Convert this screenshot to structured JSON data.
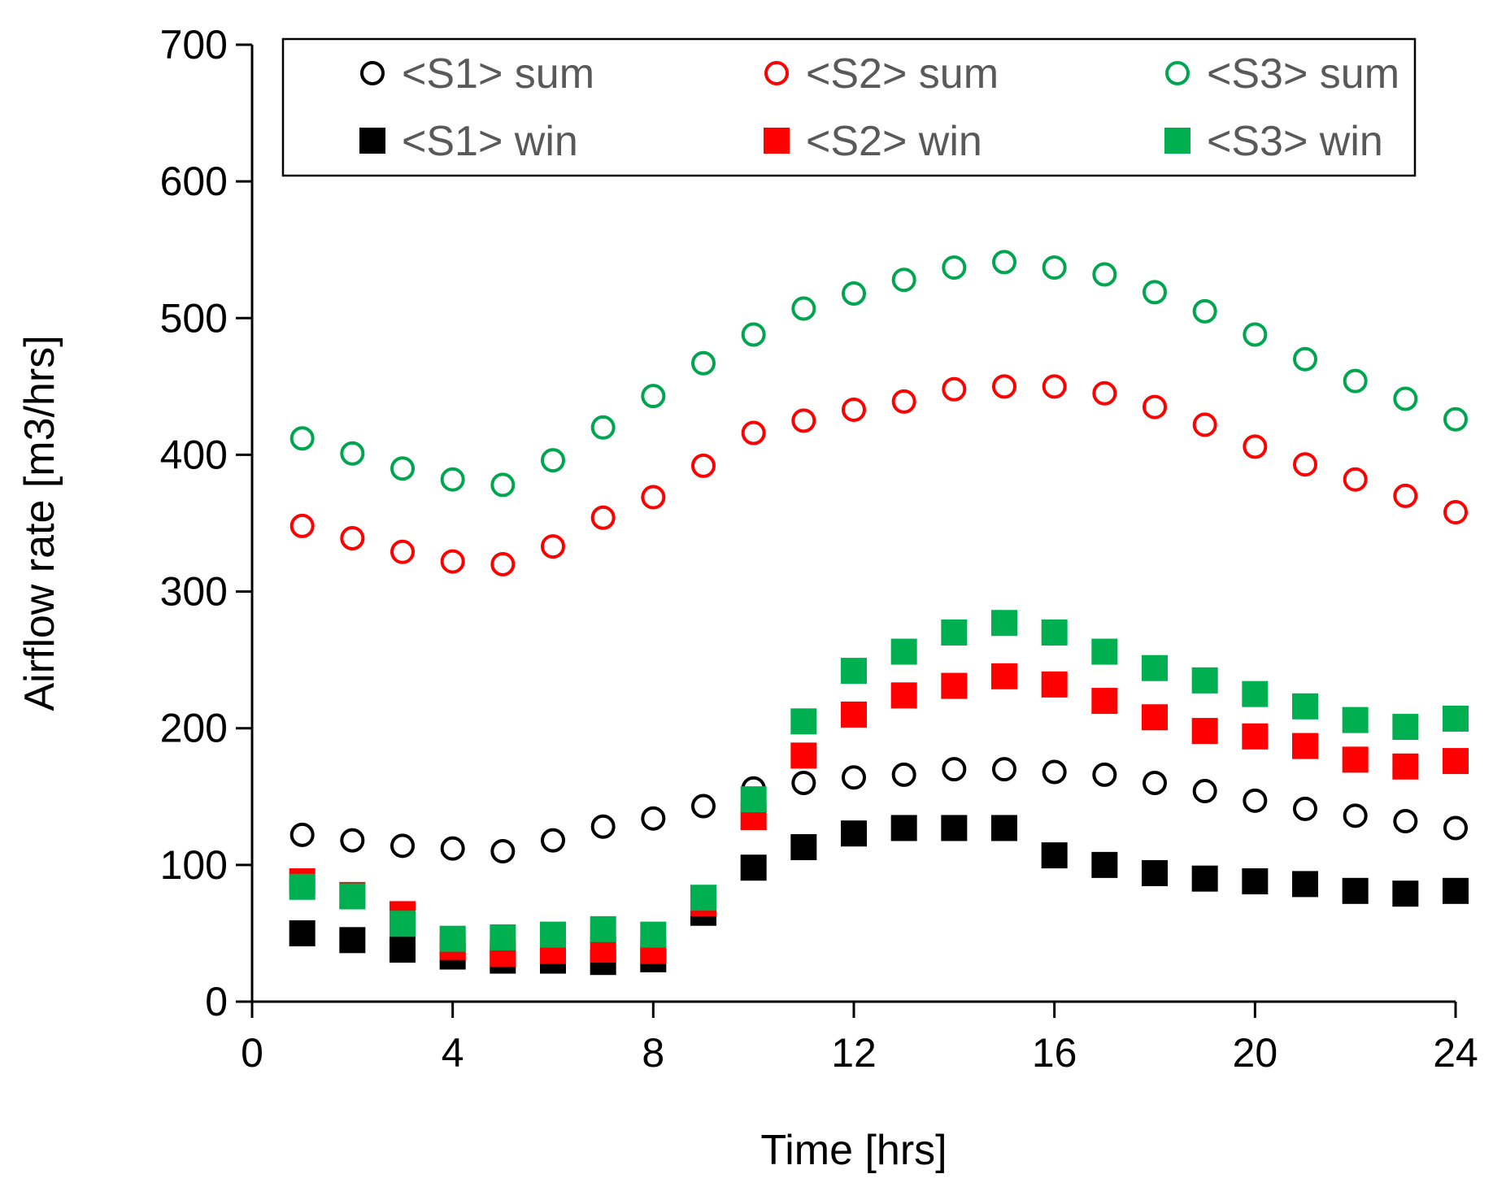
{
  "chart_data": {
    "type": "scatter",
    "title": "",
    "xlabel": "Time [hrs]",
    "ylabel": "Airflow rate [m3/hrs]",
    "xlim": [
      0,
      24
    ],
    "ylim": [
      0,
      700
    ],
    "xticks": [
      0,
      4,
      8,
      12,
      16,
      20,
      24
    ],
    "yticks": [
      0,
      100,
      200,
      300,
      400,
      500,
      600,
      700
    ],
    "grid": false,
    "legend_position": "top",
    "x": [
      1,
      2,
      3,
      4,
      5,
      6,
      7,
      8,
      9,
      10,
      11,
      12,
      13,
      14,
      15,
      16,
      17,
      18,
      19,
      20,
      21,
      22,
      23,
      24
    ],
    "series": [
      {
        "name": "<S1> sum",
        "marker": "circle-open",
        "color": "#000000",
        "values": [
          122,
          118,
          114,
          112,
          110,
          118,
          128,
          134,
          143,
          156,
          160,
          164,
          166,
          170,
          170,
          168,
          166,
          160,
          154,
          147,
          141,
          136,
          132,
          127
        ]
      },
      {
        "name": "<S2> sum",
        "marker": "circle-open",
        "color": "#ff0000",
        "values": [
          348,
          339,
          329,
          322,
          320,
          333,
          354,
          369,
          392,
          416,
          425,
          433,
          439,
          448,
          450,
          450,
          445,
          435,
          422,
          406,
          393,
          382,
          370,
          358
        ]
      },
      {
        "name": "<S3> sum",
        "marker": "circle-open",
        "color": "#00a550",
        "values": [
          412,
          401,
          390,
          382,
          378,
          396,
          420,
          443,
          467,
          488,
          507,
          518,
          528,
          537,
          541,
          537,
          532,
          519,
          505,
          488,
          470,
          454,
          441,
          426
        ]
      },
      {
        "name": "<S1> win",
        "marker": "square-filled",
        "color": "#000000",
        "values": [
          50,
          45,
          38,
          33,
          30,
          30,
          29,
          31,
          65,
          98,
          113,
          123,
          127,
          127,
          127,
          107,
          100,
          94,
          90,
          88,
          86,
          81,
          79,
          81
        ]
      },
      {
        "name": "<S2> win",
        "marker": "square-filled",
        "color": "#ff0000",
        "values": [
          88,
          78,
          64,
          40,
          35,
          37,
          38,
          37,
          72,
          135,
          180,
          210,
          224,
          231,
          238,
          232,
          220,
          208,
          198,
          194,
          187,
          177,
          172,
          176
        ]
      },
      {
        "name": "<S3> win",
        "marker": "square-filled",
        "color": "#00b050",
        "values": [
          84,
          77,
          57,
          46,
          47,
          49,
          53,
          49,
          76,
          148,
          205,
          242,
          256,
          270,
          277,
          270,
          256,
          244,
          235,
          225,
          216,
          206,
          201,
          207
        ]
      }
    ]
  }
}
